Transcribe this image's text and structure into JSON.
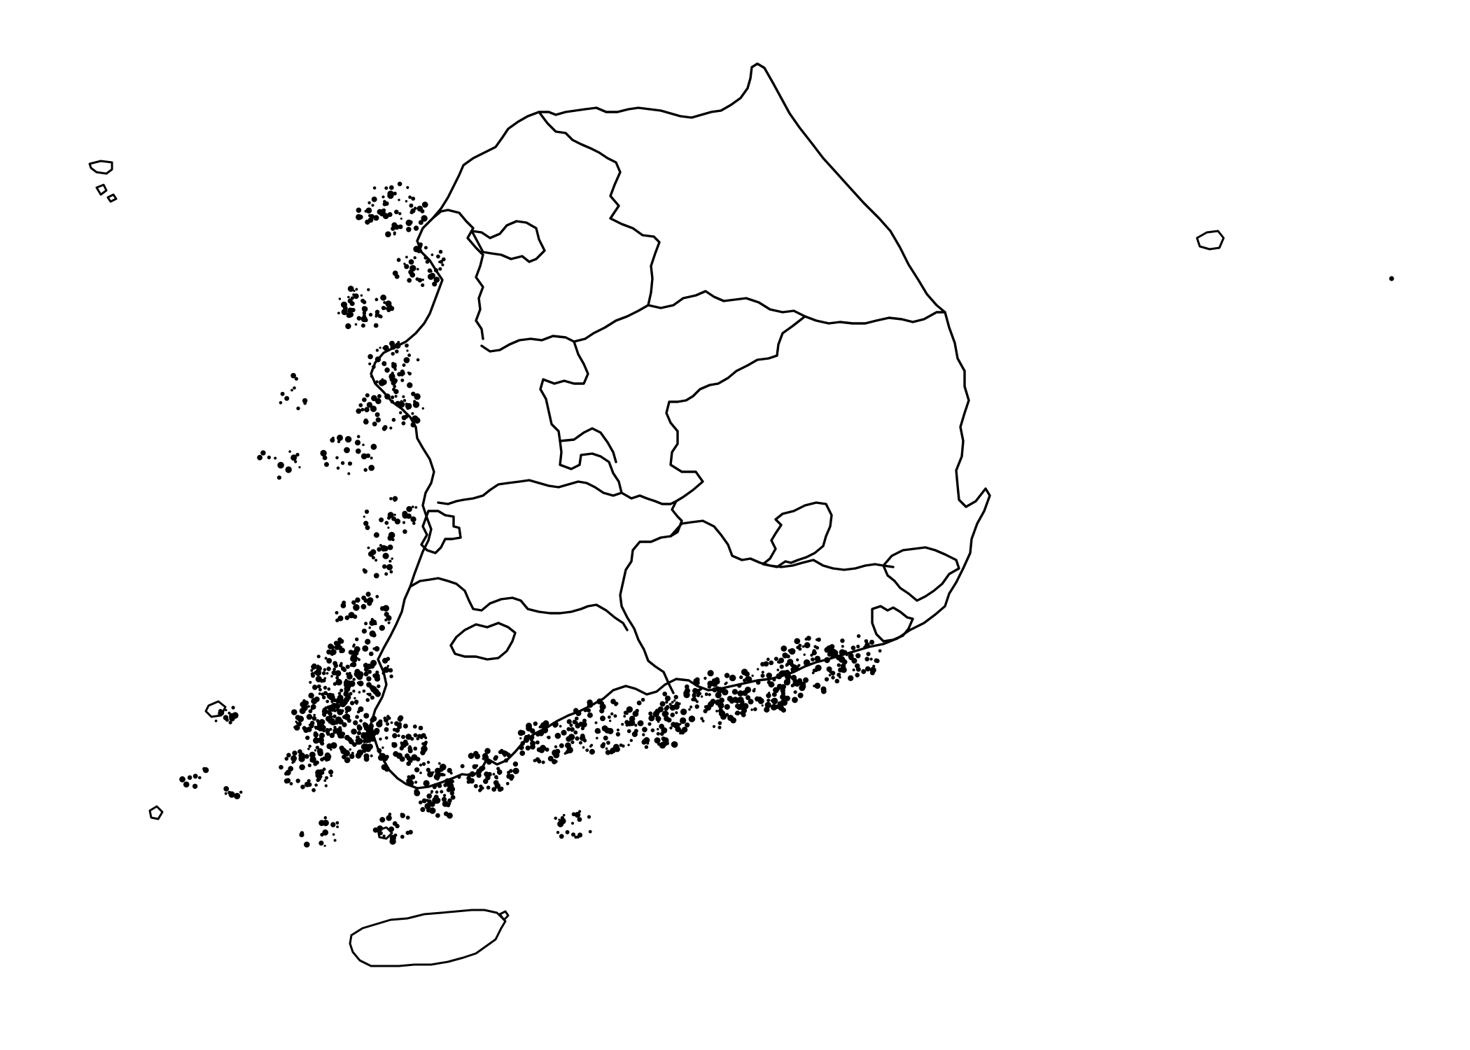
{
  "map": {
    "background_color": "#ffffff",
    "outline_color": "#000000"
  }
}
